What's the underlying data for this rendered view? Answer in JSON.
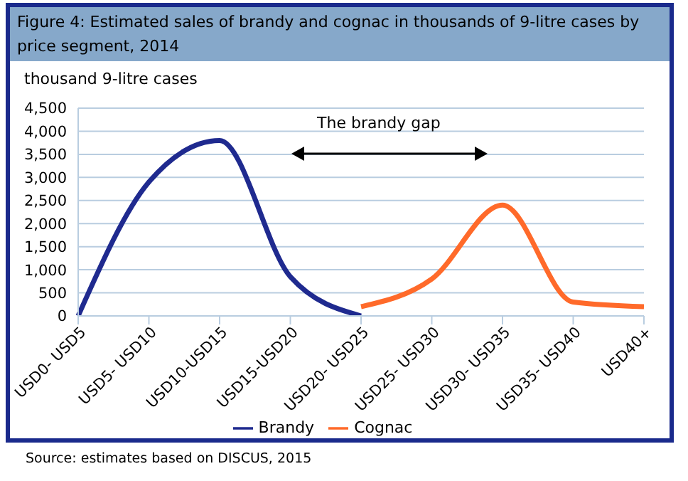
{
  "chart_data": {
    "type": "line",
    "title": "Figure 4: Estimated sales of brandy and cognac in thousands of 9-litre cases by price segment, 2014",
    "ylabel": "thousand 9-litre cases",
    "categories": [
      "USD0- USD5",
      "USD5- USD10",
      "USD10-USD15",
      "USD15-USD20",
      "USD20- USD25",
      "USD25- USD30",
      "USD30- USD35",
      "USD35- USD40",
      "USD40+"
    ],
    "series": [
      {
        "name": "Brandy",
        "color": "#1f2a8f",
        "values": [
          0,
          2900,
          3800,
          850,
          0,
          null,
          null,
          null,
          null
        ]
      },
      {
        "name": "Cognac",
        "color": "#ff6a2a",
        "values": [
          null,
          null,
          null,
          null,
          200,
          800,
          2400,
          300,
          200
        ]
      }
    ],
    "ylim": [
      0,
      4500
    ],
    "yticks": [
      {
        "value": 0,
        "label": "0"
      },
      {
        "value": 500,
        "label": "500"
      },
      {
        "value": 1000,
        "label": "1,000"
      },
      {
        "value": 1500,
        "label": "1,500"
      },
      {
        "value": 2000,
        "label": "2,000"
      },
      {
        "value": 2500,
        "label": "2,500"
      },
      {
        "value": 3000,
        "label": "3,000"
      },
      {
        "value": 3500,
        "label": "3,500"
      },
      {
        "value": 4000,
        "label": "4,000"
      },
      {
        "value": 4500,
        "label": "4,500"
      }
    ],
    "grid": "y",
    "legend": "bottom",
    "marker": "none",
    "annotations": [
      "The brandy gap",
      "Source: estimates based on DISCUS, 2015"
    ]
  }
}
